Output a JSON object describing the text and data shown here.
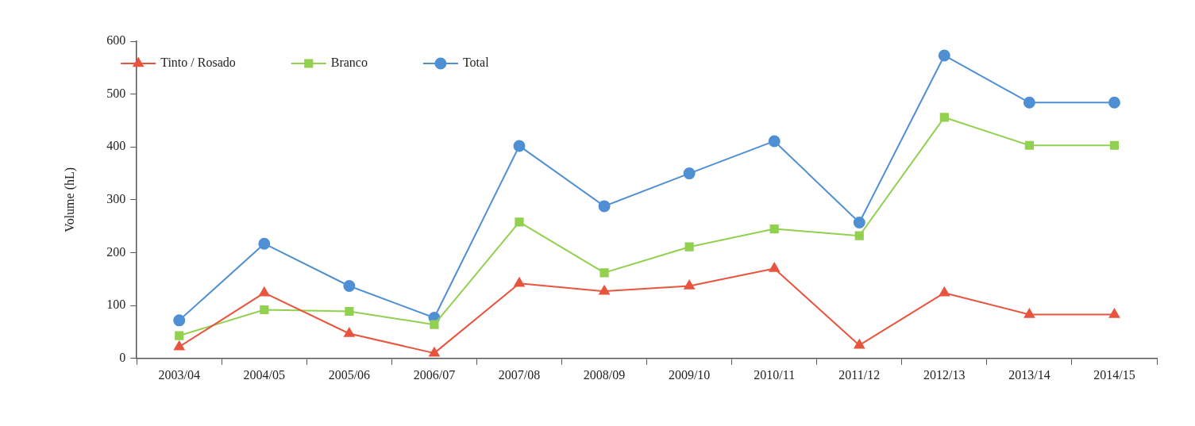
{
  "chart_data": {
    "type": "line",
    "ylabel": "Volume (hL)",
    "categories": [
      "2003/04",
      "2004/05",
      "2005/06",
      "2006/07",
      "2007/08",
      "2008/09",
      "2009/10",
      "2010/11",
      "2011/12",
      "2012/13",
      "2013/14",
      "2014/15"
    ],
    "series": [
      {
        "name": "Tinto / Rosado",
        "color": "#e8553e",
        "marker": "triangle",
        "values": [
          22,
          124,
          47,
          10,
          142,
          127,
          137,
          170,
          25,
          124,
          83,
          83
        ]
      },
      {
        "name": "Branco",
        "color": "#92d050",
        "marker": "square",
        "values": [
          43,
          92,
          89,
          64,
          258,
          162,
          211,
          245,
          232,
          456,
          403,
          403
        ]
      },
      {
        "name": "Total",
        "color": "#4f8fd3",
        "marker": "circle",
        "values": [
          72,
          217,
          137,
          77,
          402,
          288,
          350,
          411,
          257,
          573,
          484,
          484
        ]
      }
    ],
    "ylim": [
      0,
      600
    ],
    "yticks": [
      0,
      100,
      200,
      300,
      400,
      500,
      600
    ],
    "grid": false,
    "legend": "top left",
    "line_style": "solid"
  }
}
